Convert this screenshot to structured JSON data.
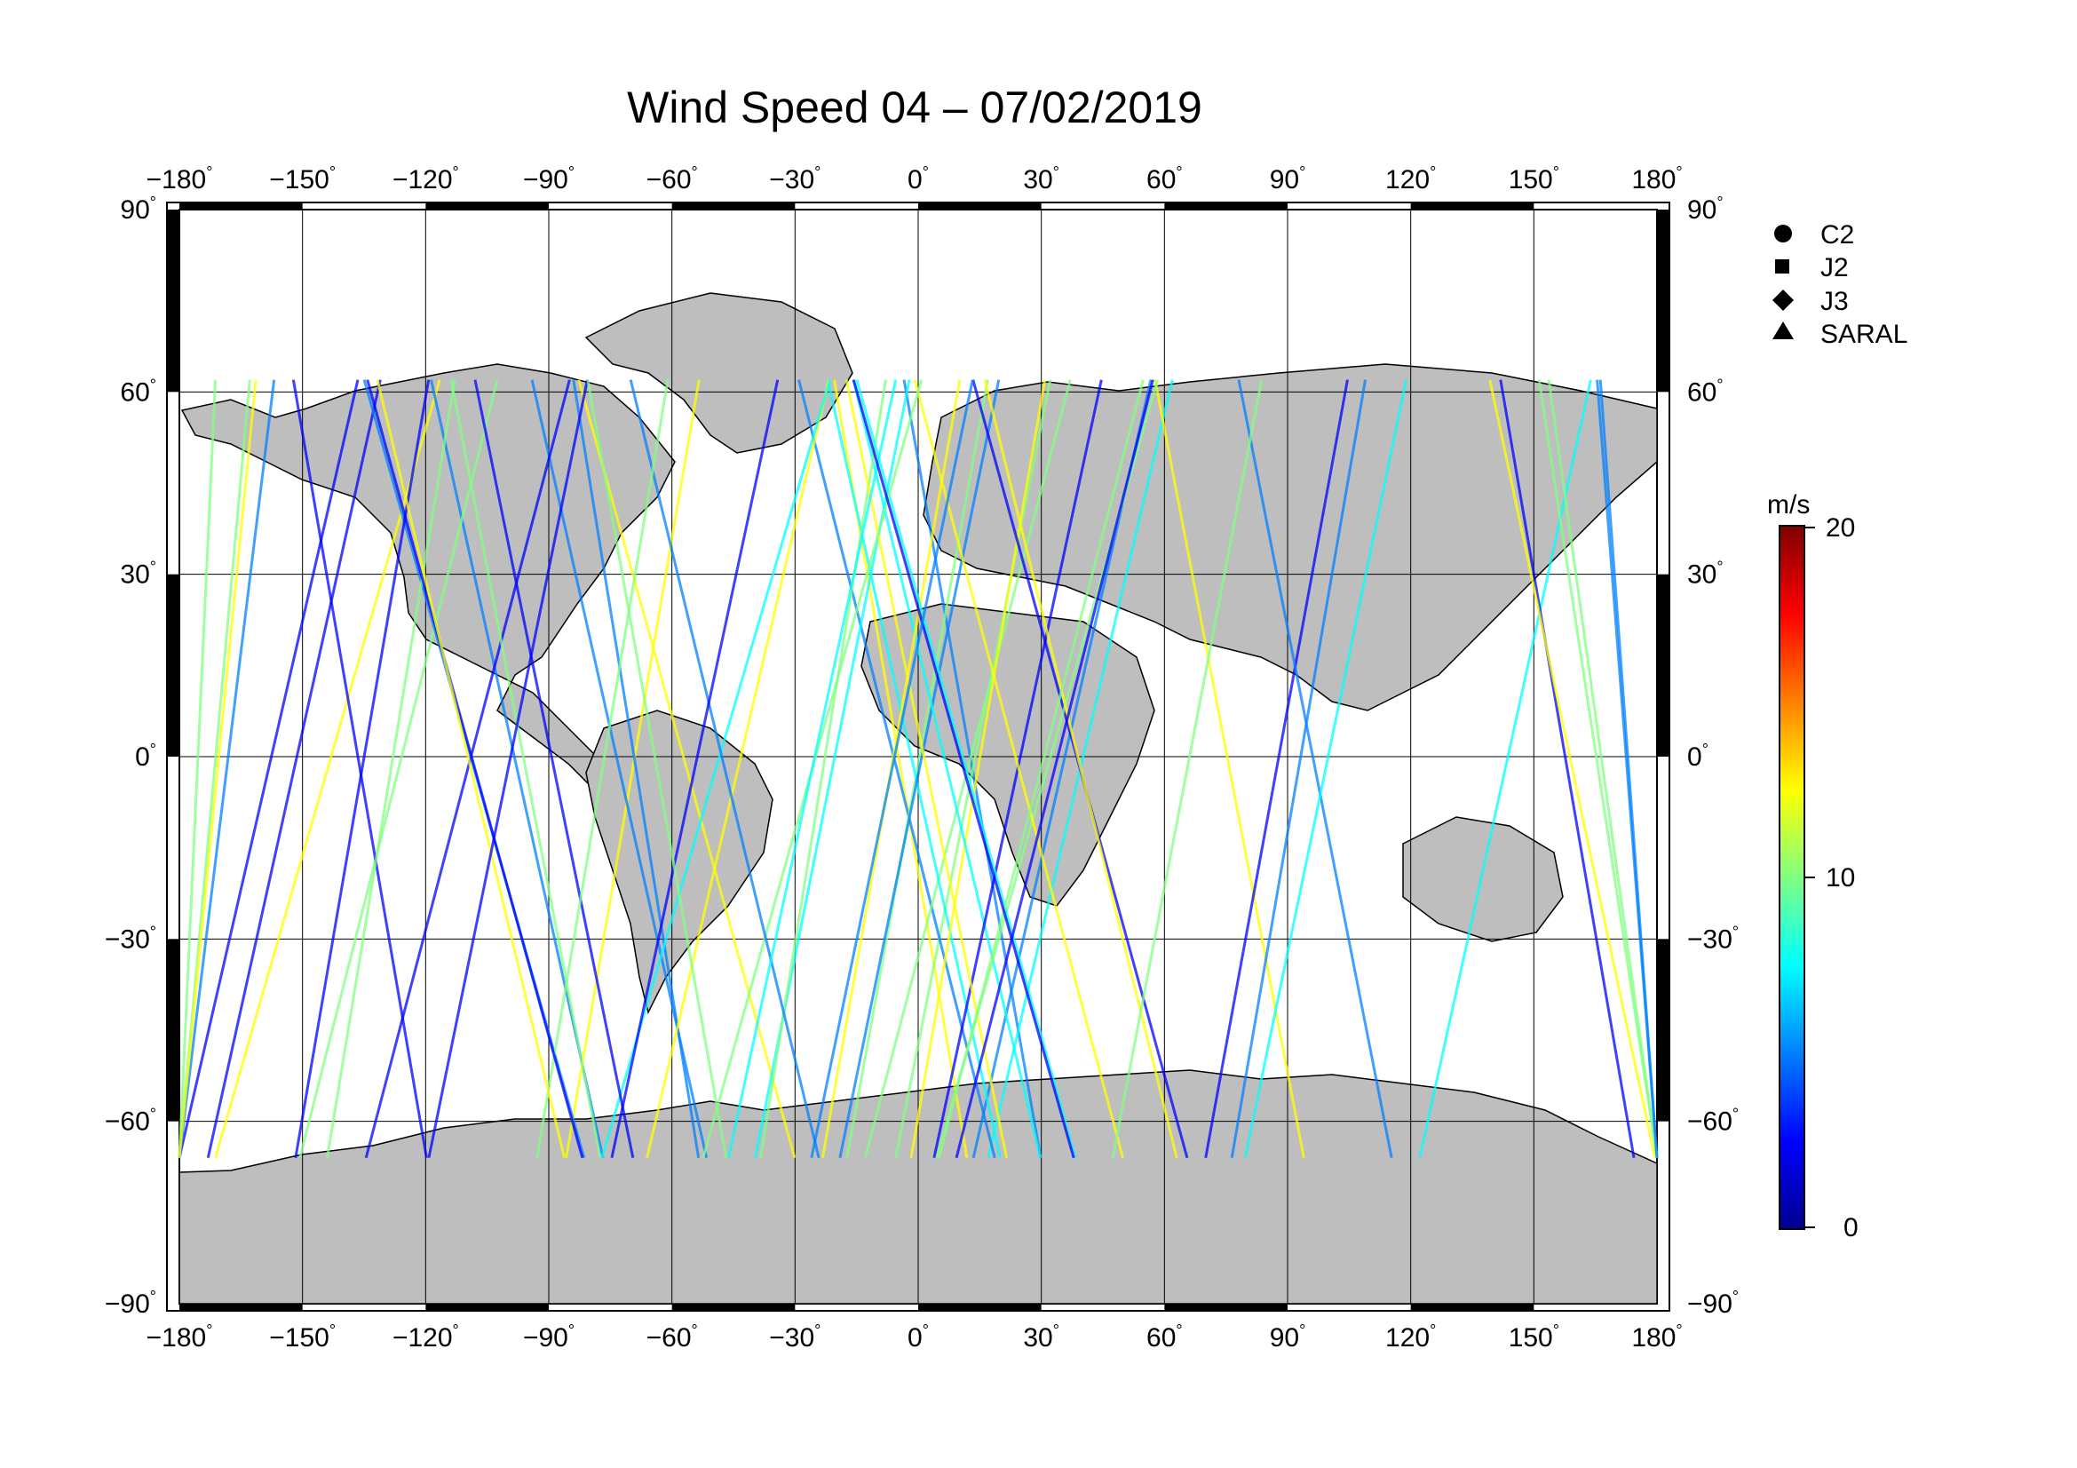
{
  "title": "Wind Speed 04 – 07/02/2019",
  "lon_ticks": [
    "−180",
    "−150",
    "−120",
    "−90",
    "−60",
    "−30",
    "0",
    "30",
    "60",
    "90",
    "120",
    "150",
    "180"
  ],
  "lat_ticks_left": [
    "90",
    "60",
    "30",
    "0",
    "−30",
    "−60",
    "−90"
  ],
  "lat_ticks_right": [
    "90",
    "60",
    "30",
    "0",
    "−30",
    "−60",
    "−90"
  ],
  "degree_symbol": "°",
  "legend": [
    {
      "symbol": "circle",
      "label": "C2"
    },
    {
      "symbol": "square",
      "label": "J2"
    },
    {
      "symbol": "diamond",
      "label": "J3"
    },
    {
      "symbol": "triangle",
      "label": "SARAL"
    }
  ],
  "colorbar": {
    "unit": "m/s",
    "min_label": "0",
    "mid_label": "10",
    "max_label": "20",
    "colors": [
      "#00008f",
      "#0000ff",
      "#0080ff",
      "#00ffff",
      "#80ff80",
      "#ffff00",
      "#ff8000",
      "#ff0000",
      "#800000"
    ]
  },
  "colors": {
    "land": "#bebebe",
    "ocean": "#ffffff",
    "grid": "#000000"
  }
}
